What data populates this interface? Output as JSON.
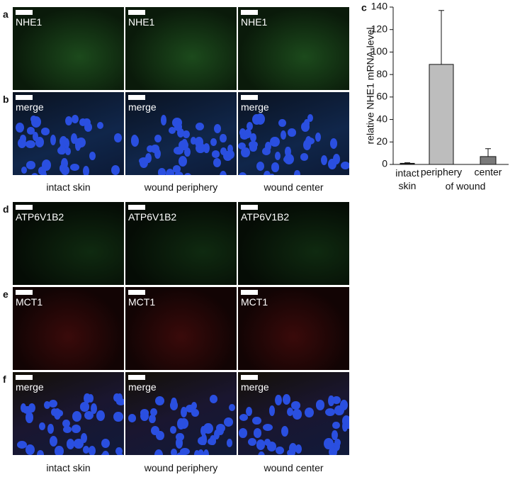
{
  "figure": {
    "rows": [
      {
        "label": "a",
        "images": [
          "NHE1",
          "NHE1",
          "NHE1"
        ]
      },
      {
        "label": "b",
        "images": [
          "merge",
          "merge",
          "merge"
        ]
      },
      {
        "label": "d",
        "images": [
          "ATP6V1B2",
          "ATP6V1B2",
          "ATP6V1B2"
        ]
      },
      {
        "label": "e",
        "images": [
          "MCT1",
          "MCT1",
          "MCT1"
        ]
      },
      {
        "label": "f",
        "images": [
          "merge",
          "merge",
          "merge"
        ]
      }
    ],
    "captions_top": [
      "intact skin",
      "wound periphery",
      "wound center"
    ],
    "captions_bottom": [
      "intact skin",
      "wound periphery",
      "wound center"
    ]
  },
  "chart_data": {
    "type": "bar",
    "panel_label": "c",
    "ylabel": "relative NHE1 mRNA-level",
    "categories": [
      "intact skin",
      "periphery",
      "center"
    ],
    "category_note": "of wound",
    "values": [
      1,
      89,
      7
    ],
    "errors": [
      0.5,
      48,
      7
    ],
    "colors": [
      "#222222",
      "#bdbdbd",
      "#7a7a7a"
    ],
    "ylim": [
      0,
      140
    ],
    "yticks": [
      0,
      20,
      40,
      60,
      80,
      100,
      120,
      140
    ]
  }
}
